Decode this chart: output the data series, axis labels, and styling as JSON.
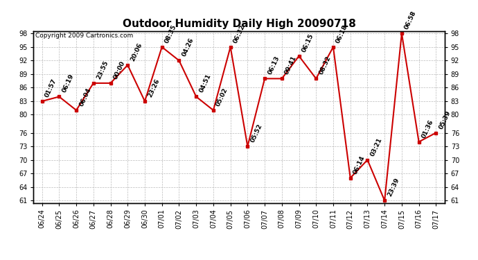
{
  "title": "Outdoor Humidity Daily High 20090718",
  "copyright": "Copyright 2009 Cartronics.com",
  "categories": [
    "06/24",
    "06/25",
    "06/26",
    "06/27",
    "06/28",
    "06/29",
    "06/30",
    "07/01",
    "07/02",
    "07/03",
    "07/04",
    "07/05",
    "07/06",
    "07/07",
    "07/08",
    "07/09",
    "07/10",
    "07/11",
    "07/12",
    "07/13",
    "07/14",
    "07/15",
    "07/16",
    "07/17"
  ],
  "values": [
    83,
    84,
    81,
    87,
    87,
    91,
    83,
    95,
    92,
    84,
    81,
    95,
    73,
    88,
    88,
    93,
    88,
    95,
    66,
    70,
    61,
    98,
    74,
    76
  ],
  "labels": [
    "01:57",
    "06:19",
    "06:04",
    "23:55",
    "00:00",
    "20:06",
    "23:26",
    "08:35",
    "04:26",
    "04:51",
    "05:02",
    "06:32",
    "05:52",
    "06:13",
    "09:41",
    "06:15",
    "08:32",
    "06:18",
    "06:14",
    "03:21",
    "23:39",
    "06:58",
    "01:36",
    "05:39"
  ],
  "line_color": "#cc0000",
  "marker_color": "#cc0000",
  "bg_color": "#ffffff",
  "grid_color": "#bbbbbb",
  "ylim_min": 61,
  "ylim_max": 98,
  "yticks": [
    61,
    64,
    67,
    70,
    73,
    76,
    80,
    83,
    86,
    89,
    92,
    95,
    98
  ],
  "title_fontsize": 11,
  "label_fontsize": 6.5,
  "tick_fontsize": 7,
  "copyright_fontsize": 6.5
}
